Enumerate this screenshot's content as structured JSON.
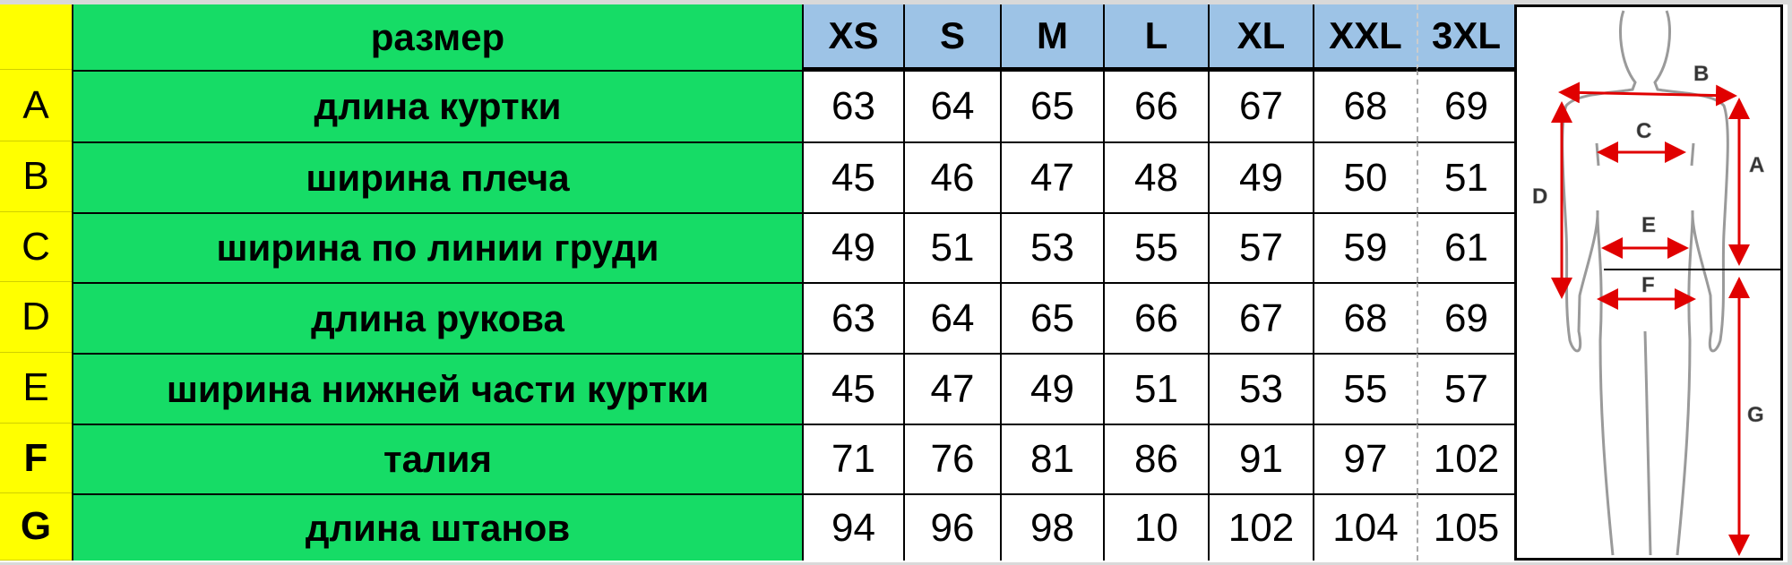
{
  "header_label": "размер",
  "sizes": [
    "XS",
    "S",
    "M",
    "L",
    "XL",
    "XXL",
    "3XL"
  ],
  "rows": [
    {
      "letter": "A",
      "label": "длина куртки",
      "values": [
        "63",
        "64",
        "65",
        "66",
        "67",
        "68",
        "69"
      ]
    },
    {
      "letter": "B",
      "label": "ширина плеча",
      "values": [
        "45",
        "46",
        "47",
        "48",
        "49",
        "50",
        "51"
      ]
    },
    {
      "letter": "C",
      "label": "ширина по линии груди",
      "values": [
        "49",
        "51",
        "53",
        "55",
        "57",
        "59",
        "61"
      ]
    },
    {
      "letter": "D",
      "label": "длина рукова",
      "values": [
        "63",
        "64",
        "65",
        "66",
        "67",
        "68",
        "69"
      ]
    },
    {
      "letter": "E",
      "label": "ширина нижней части куртки",
      "values": [
        "45",
        "47",
        "49",
        "51",
        "53",
        "55",
        "57"
      ]
    },
    {
      "letter": "F",
      "label": "талия",
      "values": [
        "71",
        "76",
        "81",
        "86",
        "91",
        "97",
        "102"
      ]
    },
    {
      "letter": "G",
      "label": "длина штанов",
      "values": [
        "94",
        "96",
        "98",
        "10",
        "102",
        "104",
        "105"
      ]
    }
  ],
  "figure_labels": {
    "A": "A",
    "B": "B",
    "C": "C",
    "D": "D",
    "E": "E",
    "F": "F",
    "G": "G"
  },
  "colors": {
    "letter_column": "#ffff00",
    "param_column": "#16dc66",
    "size_header": "#9dc3e6",
    "arrows": "#e00000"
  }
}
